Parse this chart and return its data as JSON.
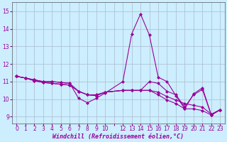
{
  "background_color": "#cceeff",
  "grid_color": "#aabbcc",
  "line_color": "#990099",
  "xlabel": "Windchill (Refroidissement éolien,°C)",
  "ylabel_ticks": [
    9,
    10,
    11,
    12,
    13,
    14,
    15
  ],
  "xlim": [
    -0.5,
    23.5
  ],
  "ylim": [
    8.6,
    15.5
  ],
  "series": [
    [
      0,
      11.3
    ],
    [
      1,
      11.2
    ],
    [
      2,
      11.1
    ],
    [
      3,
      11.0
    ],
    [
      4,
      11.0
    ],
    [
      5,
      10.95
    ],
    [
      6,
      10.9
    ],
    [
      7,
      10.05
    ],
    [
      8,
      9.8
    ],
    [
      9,
      10.05
    ],
    [
      10,
      10.35
    ],
    [
      12,
      11.0
    ],
    [
      13,
      13.7
    ],
    [
      14,
      14.85
    ],
    [
      15,
      13.65
    ],
    [
      16,
      11.25
    ],
    [
      17,
      11.0
    ],
    [
      18,
      10.2
    ],
    [
      19,
      9.45
    ],
    [
      20,
      10.3
    ],
    [
      21,
      10.65
    ],
    [
      22,
      9.1
    ],
    [
      23,
      9.4
    ]
  ],
  "series2": [
    [
      0,
      11.3
    ],
    [
      1,
      11.2
    ],
    [
      2,
      11.05
    ],
    [
      3,
      10.95
    ],
    [
      4,
      10.9
    ],
    [
      5,
      10.85
    ],
    [
      6,
      10.8
    ],
    [
      7,
      10.45
    ],
    [
      8,
      10.25
    ],
    [
      9,
      10.2
    ],
    [
      10,
      10.4
    ],
    [
      12,
      10.5
    ],
    [
      13,
      10.5
    ],
    [
      14,
      10.5
    ],
    [
      15,
      10.5
    ],
    [
      16,
      10.4
    ],
    [
      17,
      10.15
    ],
    [
      18,
      9.95
    ],
    [
      19,
      9.75
    ],
    [
      20,
      9.65
    ],
    [
      21,
      9.55
    ],
    [
      22,
      9.15
    ],
    [
      23,
      9.4
    ]
  ],
  "series3": [
    [
      0,
      11.3
    ],
    [
      1,
      11.2
    ],
    [
      2,
      11.05
    ],
    [
      3,
      10.95
    ],
    [
      4,
      10.9
    ],
    [
      5,
      10.85
    ],
    [
      6,
      10.8
    ],
    [
      7,
      10.45
    ],
    [
      8,
      10.25
    ],
    [
      9,
      10.2
    ],
    [
      10,
      10.4
    ],
    [
      12,
      10.5
    ],
    [
      13,
      10.5
    ],
    [
      14,
      10.5
    ],
    [
      15,
      10.5
    ],
    [
      16,
      10.25
    ],
    [
      17,
      9.95
    ],
    [
      18,
      9.75
    ],
    [
      19,
      9.45
    ],
    [
      20,
      9.45
    ],
    [
      21,
      9.35
    ],
    [
      22,
      9.1
    ],
    [
      23,
      9.4
    ]
  ],
  "series4": [
    [
      0,
      11.3
    ],
    [
      1,
      11.2
    ],
    [
      2,
      11.1
    ],
    [
      3,
      11.0
    ],
    [
      4,
      11.0
    ],
    [
      5,
      10.95
    ],
    [
      6,
      10.9
    ],
    [
      7,
      10.45
    ],
    [
      8,
      10.25
    ],
    [
      9,
      10.25
    ],
    [
      10,
      10.4
    ],
    [
      12,
      10.5
    ],
    [
      13,
      10.5
    ],
    [
      14,
      10.5
    ],
    [
      15,
      11.0
    ],
    [
      16,
      10.9
    ],
    [
      17,
      10.45
    ],
    [
      18,
      10.25
    ],
    [
      19,
      9.55
    ],
    [
      20,
      10.25
    ],
    [
      21,
      10.55
    ],
    [
      22,
      9.1
    ],
    [
      23,
      9.4
    ]
  ],
  "xtick_labels": [
    "0",
    "1",
    "2",
    "3",
    "4",
    "5",
    "6",
    "7",
    "8",
    "9",
    "10",
    "",
    "12",
    "13",
    "14",
    "15",
    "16",
    "17",
    "18",
    "19",
    "20",
    "21",
    "22",
    "23"
  ],
  "marker": "D",
  "markersize": 2.0,
  "linewidth": 0.8,
  "tick_fontsize": 5.5,
  "xlabel_fontsize": 6.0
}
